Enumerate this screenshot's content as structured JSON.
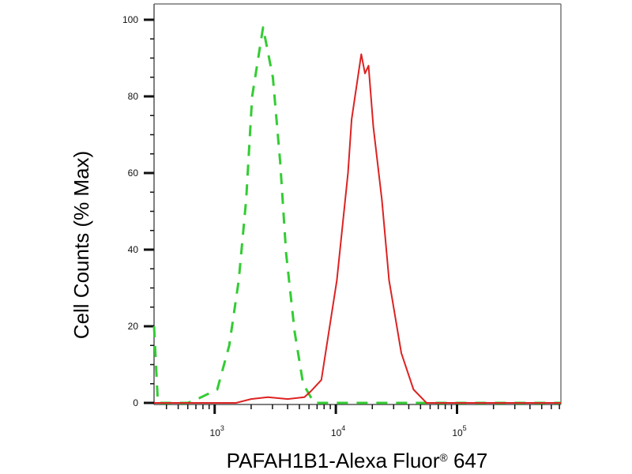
{
  "chart_data": {
    "type": "line",
    "title": "",
    "xlabel": "PAFAH1B1-Alexa Fluor® 647",
    "ylabel": "Cell Counts (% Max)",
    "x_scale": "log",
    "xlim": [
      316,
      720000
    ],
    "ylim": [
      0,
      100
    ],
    "grid": false,
    "x_ticks": [
      {
        "value": 1000,
        "base": "10",
        "exp": "3"
      },
      {
        "value": 10000,
        "base": "10",
        "exp": "4"
      },
      {
        "value": 100000,
        "base": "10",
        "exp": "5"
      }
    ],
    "y_ticks": [
      "0",
      "20",
      "40",
      "60",
      "80",
      "100"
    ],
    "series": [
      {
        "color": "#33cc33",
        "style": "dashed",
        "x": [
          316,
          330,
          340,
          600,
          720,
          1050,
          1320,
          1580,
          1820,
          2040,
          2510,
          3020,
          3470,
          3890,
          4570,
          5370,
          6610,
          720000
        ],
        "y": [
          20,
          8,
          0,
          0,
          1,
          3.5,
          15,
          32,
          53,
          80,
          98,
          85,
          63,
          39,
          18.5,
          5,
          0,
          0
        ]
      },
      {
        "color": "#dd2222",
        "style": "solid",
        "x": [
          316,
          1500,
          2000,
          2750,
          4000,
          5500,
          6200,
          7590,
          10200,
          12600,
          13500,
          16200,
          17400,
          18600,
          20400,
          24000,
          27500,
          34700,
          43700,
          56000,
          720000
        ],
        "y": [
          0,
          0,
          1,
          1.5,
          1,
          1.5,
          3,
          6,
          32,
          60,
          74,
          91,
          86,
          88,
          72,
          53,
          32,
          13,
          3.5,
          0,
          0
        ]
      }
    ]
  }
}
